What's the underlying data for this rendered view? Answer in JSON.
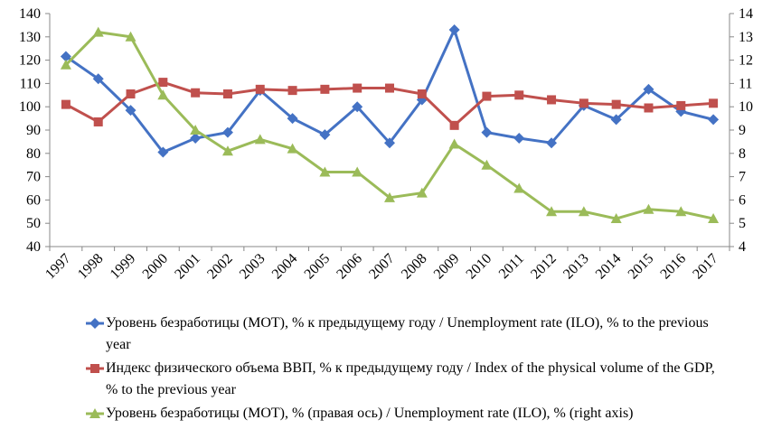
{
  "chart_data": {
    "type": "line",
    "categories": [
      "1997",
      "1998",
      "1999",
      "2000",
      "2001",
      "2002",
      "2003",
      "2004",
      "2005",
      "2006",
      "2007",
      "2008",
      "2009",
      "2010",
      "2011",
      "2012",
      "2013",
      "2014",
      "2015",
      "2016",
      "2017"
    ],
    "series": [
      {
        "name": "Уровень безработицы (МОТ), % к предыдущему году / Unemployment rate (ILO), % to the previous year",
        "color": "#4472c4",
        "marker": "diamond",
        "values": [
          121.6,
          112,
          98.5,
          80.5,
          86.5,
          89,
          107,
          95,
          88,
          100,
          84.5,
          103,
          133,
          89,
          86.5,
          84.5,
          100.5,
          94.5,
          107.5,
          98,
          94.5
        ]
      },
      {
        "name": "Индекс физического объема ВВП, % к предыдущему году / Index of the physical volume of the GDP, % to the previous year",
        "color": "#c0504d",
        "marker": "square",
        "values": [
          101,
          93.5,
          105.5,
          110.5,
          106,
          105.5,
          107.5,
          107,
          107.5,
          108,
          108,
          105.5,
          92,
          104.5,
          105,
          103,
          101.5,
          101,
          99.5,
          100.5,
          101.5
        ]
      },
      {
        "name": "Уровень безработицы (МОТ), % (правая ось) / Unemployment rate (ILO), % (right axis)",
        "color": "#9bbb59",
        "marker": "triangle",
        "axis": "y2",
        "values": [
          11.8,
          13.2,
          13.0,
          10.5,
          9.0,
          8.1,
          8.6,
          8.2,
          7.2,
          7.2,
          6.1,
          6.3,
          8.4,
          7.5,
          6.5,
          5.5,
          5.5,
          5.2,
          5.6,
          5.5,
          5.2
        ]
      }
    ],
    "ylim": [
      40,
      140
    ],
    "yticks": [
      40,
      50,
      60,
      70,
      80,
      90,
      100,
      110,
      120,
      130,
      140
    ],
    "y2lim": [
      4,
      14
    ],
    "y2ticks": [
      4,
      5,
      6,
      7,
      8,
      9,
      10,
      11,
      12,
      13,
      14
    ],
    "grid": false,
    "legend": "bottom"
  }
}
